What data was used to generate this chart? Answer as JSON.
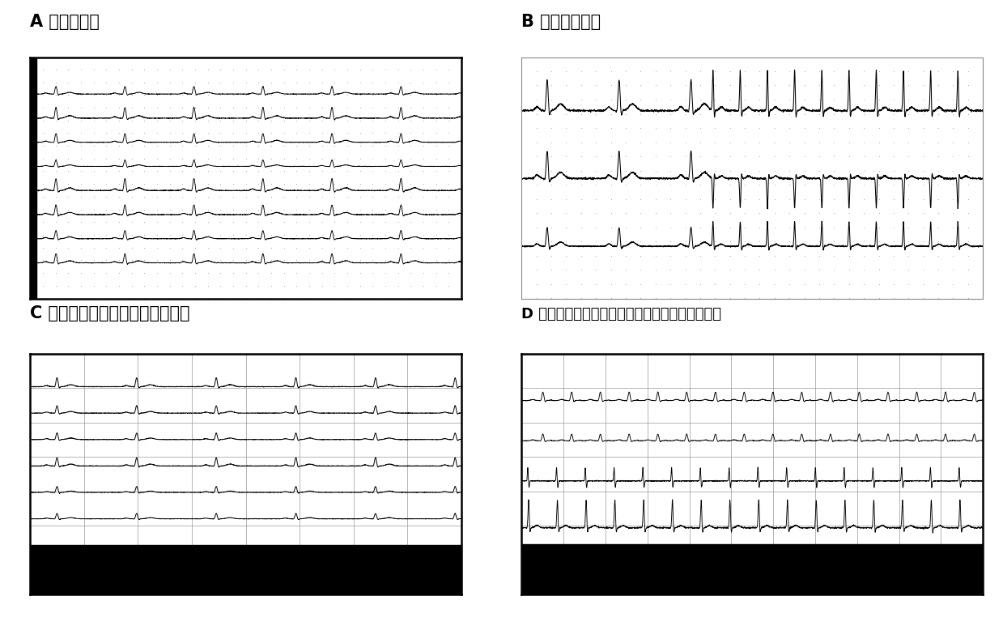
{
  "title_A": "A 正常心电图",
  "title_B": "B 发作时心电图",
  "title_C": "C 心内电生理检查显示慢径的存在",
  "title_D": "D 心内电生理检查显示房室结折返性心动过速发作",
  "bg_color": "#ffffff",
  "panel_bg_A": "#ffffff",
  "panel_bg_B": "#ffffff",
  "panel_bg_C": "#ffffff",
  "panel_bg_D": "#ffffff",
  "title_fontsize": 15,
  "cjk_font": "SimHei"
}
